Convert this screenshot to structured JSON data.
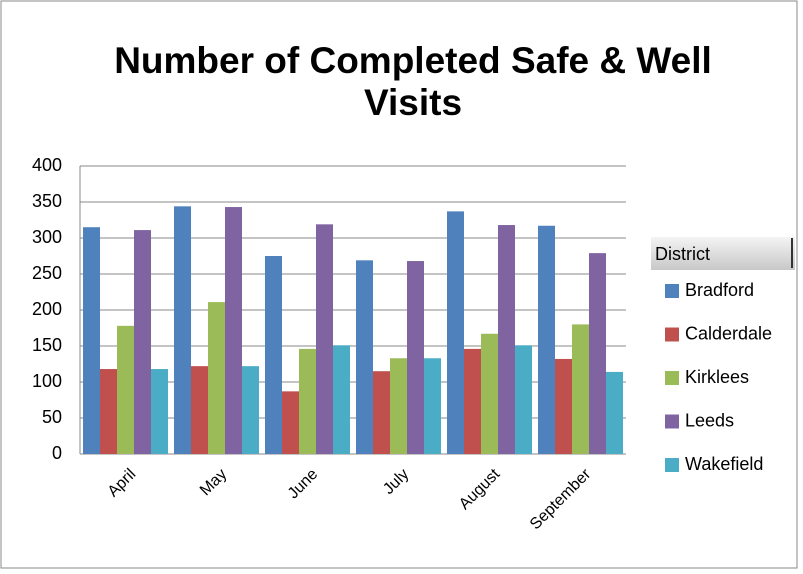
{
  "chart_data": {
    "type": "bar",
    "title": "Number of Completed Safe & Well Visits",
    "categories": [
      "April",
      "May",
      "June",
      "July",
      "August",
      "September"
    ],
    "legend_title": "District",
    "series": [
      {
        "name": "Bradford",
        "color": "#4f81bd",
        "values": [
          315,
          344,
          275,
          269,
          337,
          317
        ]
      },
      {
        "name": "Calderdale",
        "color": "#c0504d",
        "values": [
          118,
          122,
          87,
          115,
          146,
          132
        ]
      },
      {
        "name": "Kirklees",
        "color": "#9bbb59",
        "values": [
          178,
          211,
          146,
          133,
          167,
          180
        ]
      },
      {
        "name": "Leeds",
        "color": "#8064a2",
        "values": [
          311,
          343,
          319,
          268,
          318,
          279
        ]
      },
      {
        "name": "Wakefield",
        "color": "#4bacc6",
        "values": [
          118,
          122,
          151,
          133,
          151,
          114
        ]
      }
    ],
    "ylim": [
      0,
      400
    ],
    "yticks": [
      0,
      50,
      100,
      150,
      200,
      250,
      300,
      350,
      400
    ],
    "grid": true,
    "legend": "right"
  }
}
